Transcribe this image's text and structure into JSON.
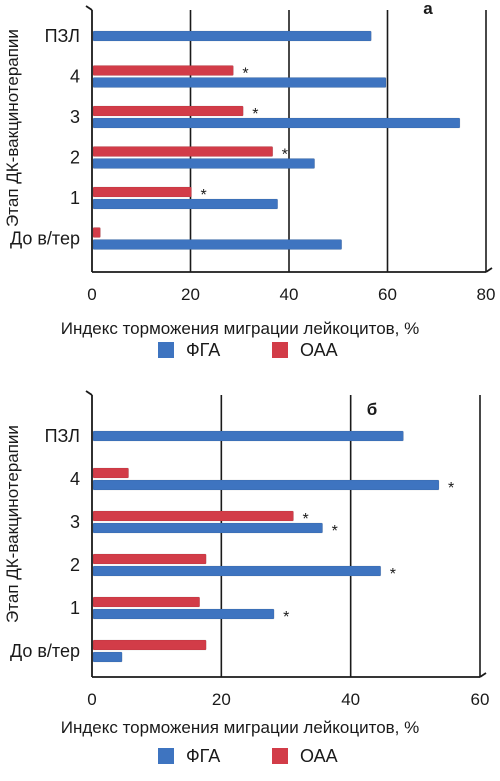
{
  "colors": {
    "fga": "#3e74c0",
    "oaa": "#d23c48",
    "axis": "#1a1a1a"
  },
  "chart_data": [
    {
      "type": "bar",
      "orientation": "horizontal",
      "panel_label": "а",
      "ylabel": "Этап ДК-вакцинотерапии",
      "xlabel": "Индекс торможения миграции лейкоцитов, %",
      "xlim": [
        0,
        80
      ],
      "xticks": [
        0,
        20,
        40,
        60,
        80
      ],
      "grid": "vertical",
      "legend_position": "bottom",
      "categories": [
        "ПЗЛ",
        "4",
        "3",
        "2",
        "1",
        "До в/тер"
      ],
      "series": [
        {
          "name": "ФГА",
          "color": "#3e74c0",
          "values": [
            56.5,
            59.5,
            74.5,
            45,
            37.5,
            50.5
          ],
          "marks": [
            "",
            "",
            "•*",
            "",
            "",
            ""
          ]
        },
        {
          "name": "ОАА",
          "color": "#d23c48",
          "values": [
            null,
            28.5,
            30.5,
            36.5,
            20,
            1.5
          ],
          "marks": [
            "",
            "*",
            "*",
            "*",
            "*",
            ""
          ]
        }
      ]
    },
    {
      "type": "bar",
      "orientation": "horizontal",
      "panel_label": "б",
      "ylabel": "Этап ДК-вакцинотерапии",
      "xlabel": "Индекс торможения миграции лейкоцитов, %",
      "xlim": [
        0,
        60
      ],
      "xticks": [
        0,
        20,
        40,
        60
      ],
      "grid": "vertical",
      "legend_position": "bottom",
      "categories": [
        "ПЗЛ",
        "4",
        "3",
        "2",
        "1",
        "До в/тер"
      ],
      "series": [
        {
          "name": "ФГА",
          "color": "#3e74c0",
          "values": [
            48,
            53.5,
            35.5,
            44.5,
            28,
            4.5
          ],
          "marks": [
            "",
            "*",
            "*",
            "*",
            "*",
            ""
          ]
        },
        {
          "name": "ОАА",
          "color": "#d23c48",
          "values": [
            null,
            5.5,
            31,
            17.5,
            16.5,
            17.5
          ],
          "marks": [
            "",
            "",
            "*",
            "",
            "",
            ""
          ]
        }
      ]
    }
  ]
}
